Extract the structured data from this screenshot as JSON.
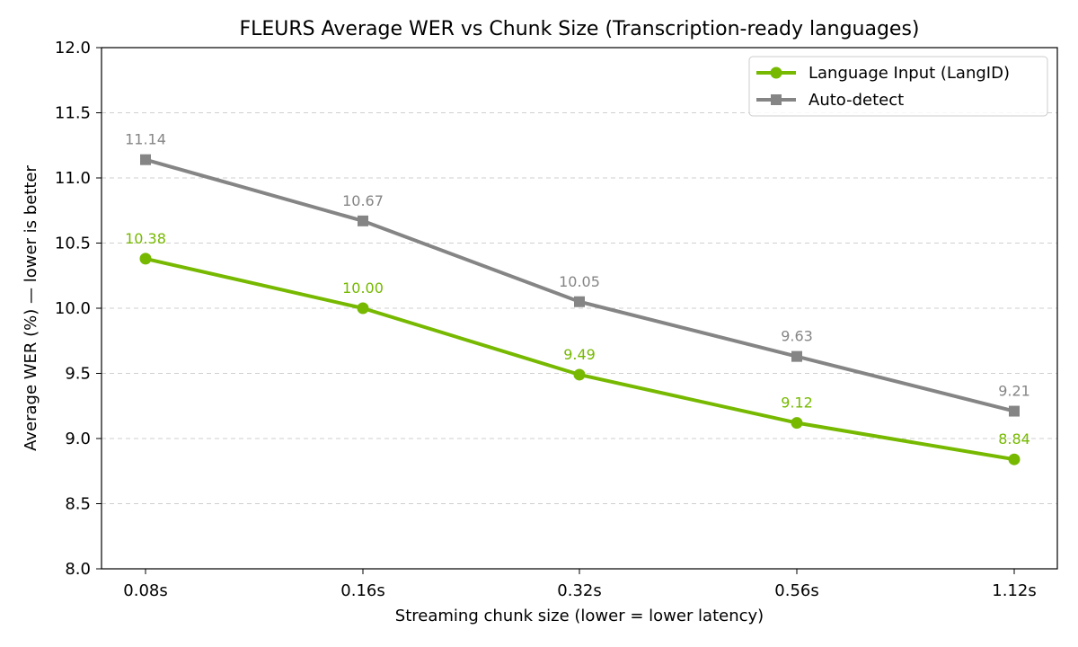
{
  "chart_data": {
    "type": "line",
    "title": "FLEURS Average WER vs Chunk Size (Transcription-ready languages)",
    "xlabel": "Streaming chunk size (lower = lower latency)",
    "ylabel": "Average WER (%)  —  lower is better",
    "categories": [
      "0.08s",
      "0.16s",
      "0.32s",
      "0.56s",
      "1.12s"
    ],
    "ylim": [
      8.0,
      12.0
    ],
    "yticks": [
      "8.0",
      "8.5",
      "9.0",
      "9.5",
      "10.0",
      "10.5",
      "11.0",
      "11.5",
      "12.0"
    ],
    "grid": "horizontal dashed",
    "legend_position": "top-right",
    "series": [
      {
        "name": "Language Input (LangID)",
        "values": [
          10.38,
          10.0,
          9.49,
          9.12,
          8.84
        ],
        "labels": [
          "10.38",
          "10.00",
          "9.49",
          "9.12",
          "8.84"
        ],
        "color": "#76b900",
        "marker": "circle"
      },
      {
        "name": "Auto-detect",
        "values": [
          11.14,
          10.67,
          10.05,
          9.63,
          9.21
        ],
        "labels": [
          "11.14",
          "10.67",
          "10.05",
          "9.63",
          "9.21"
        ],
        "color": "#858585",
        "marker": "square"
      }
    ]
  }
}
